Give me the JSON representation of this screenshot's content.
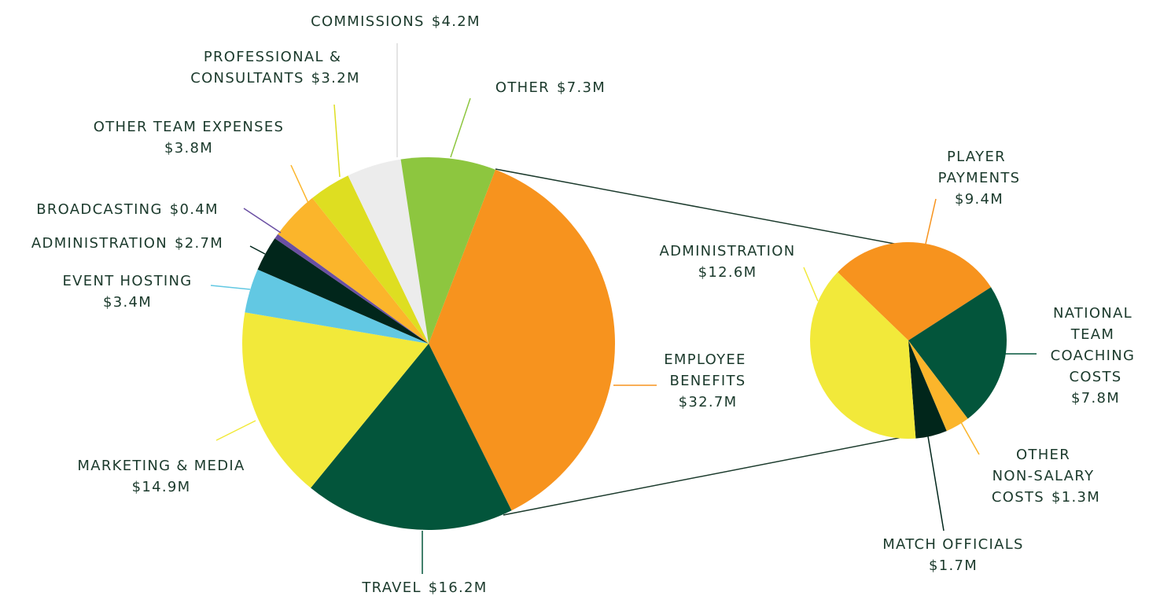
{
  "chart_data": [
    {
      "type": "pie",
      "categories": [
        "EMPLOYEE BENEFITS",
        "TRAVEL",
        "MARKETING & MEDIA",
        "EVENT HOSTING",
        "ADMINISTRATION",
        "BROADCASTING",
        "OTHER TEAM EXPENSES",
        "PROFESSIONAL & CONSULTANTS",
        "COMMISSIONS",
        "OTHER"
      ],
      "values": [
        32.7,
        16.2,
        14.9,
        3.4,
        2.7,
        0.4,
        3.8,
        3.2,
        4.2,
        7.3
      ],
      "value_labels": [
        "$32.7M",
        "$16.2M",
        "$14.9M",
        "$3.4M",
        "$2.7M",
        "$0.4M",
        "$3.8M",
        "$3.2M",
        "$4.2M",
        "$7.3M"
      ],
      "colors": [
        "#f7931e",
        "#03553b",
        "#f2e93a",
        "#62c8e3",
        "#01261b",
        "#6a4fa3",
        "#fbb52b",
        "#dede21",
        "#ececec",
        "#8dc63f"
      ]
    },
    {
      "type": "pie",
      "categories": [
        "PLAYER PAYMENTS",
        "NATIONAL TEAM COACHING COSTS",
        "OTHER NON-SALARY COSTS",
        "MATCH OFFICIALS",
        "ADMINISTRATION"
      ],
      "values": [
        9.4,
        7.8,
        1.3,
        1.7,
        12.6
      ],
      "value_labels": [
        "$9.4M",
        "$7.8M",
        "$1.3M",
        "$1.7M",
        "$12.6M"
      ],
      "colors": [
        "#f7931e",
        "#03553b",
        "#fbb52b",
        "#01261b",
        "#f2e93a"
      ]
    }
  ]
}
